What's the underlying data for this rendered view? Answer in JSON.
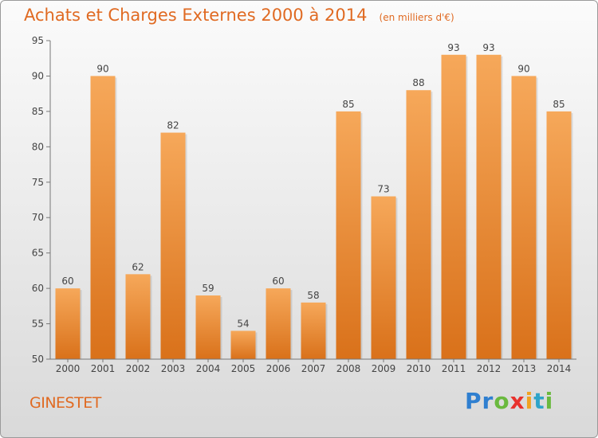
{
  "chart_data": {
    "type": "bar",
    "title": "Achats et Charges Externes 2000 à 2014",
    "subtitle": "(en milliers d'€)",
    "categories": [
      "2000",
      "2001",
      "2002",
      "2003",
      "2004",
      "2005",
      "2006",
      "2007",
      "2008",
      "2009",
      "2010",
      "2011",
      "2012",
      "2013",
      "2014"
    ],
    "values": [
      60,
      90,
      62,
      82,
      59,
      54,
      60,
      58,
      85,
      73,
      88,
      93,
      93,
      90,
      85
    ],
    "ylim": [
      50,
      95
    ],
    "yticks": [
      50,
      55,
      60,
      65,
      70,
      75,
      80,
      85,
      90,
      95
    ],
    "grid": false,
    "bar_colors": {
      "top": "#f6a85a",
      "bottom": "#d9711a"
    },
    "text_color": "#e06a22",
    "label_color": "#444444"
  },
  "footer": {
    "city": "GINESTET",
    "brand": "Proxiti"
  }
}
